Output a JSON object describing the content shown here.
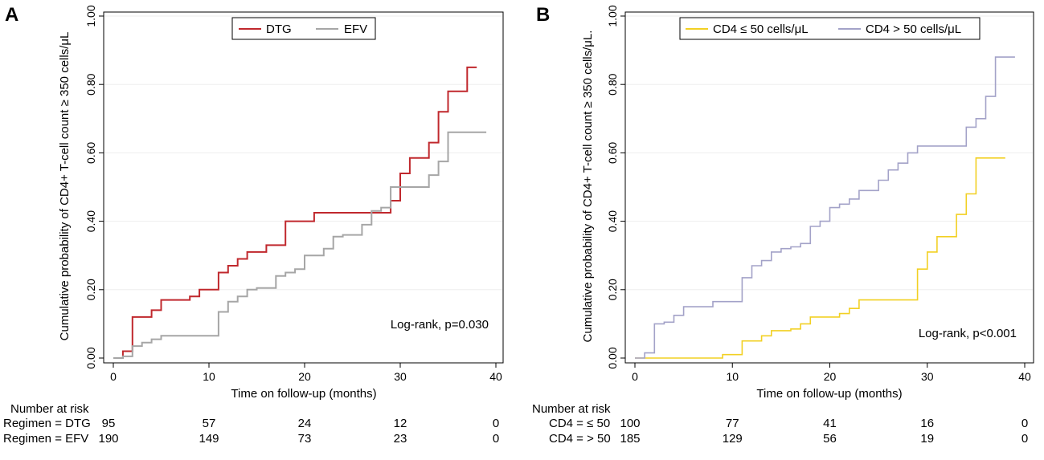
{
  "chart_data": [
    {
      "panel": "A",
      "type": "line",
      "step": true,
      "xlabel": "Time on follow-up (months)",
      "ylabel": "Cumulative probability of CD4+ T-cell count ≥ 350 cells/μL",
      "xlim": [
        0,
        40
      ],
      "ylim": [
        0,
        1
      ],
      "xticks": [
        "0",
        "10",
        "20",
        "30",
        "40"
      ],
      "xtick_values": [
        0,
        10,
        20,
        30,
        40
      ],
      "yticks": [
        "0.00",
        "0.20",
        "0.40",
        "0.60",
        "0.80",
        "1.00"
      ],
      "ytick_values": [
        0,
        0.2,
        0.4,
        0.6,
        0.8,
        1.0
      ],
      "legend": {
        "position": "top-center",
        "entries": [
          {
            "label": "DTG",
            "color": "#c0282d"
          },
          {
            "label": "EFV",
            "color": "#a6a6a6"
          }
        ]
      },
      "annotation": "Log-rank, p=0.030",
      "series": [
        {
          "name": "DTG",
          "color": "#c0282d",
          "x": [
            0,
            1,
            2,
            4,
            5,
            8,
            9,
            11,
            12,
            13,
            14,
            16,
            18,
            21,
            29,
            30,
            31,
            33,
            34,
            35,
            37,
            38
          ],
          "y": [
            0,
            0.02,
            0.12,
            0.14,
            0.17,
            0.18,
            0.2,
            0.25,
            0.27,
            0.29,
            0.31,
            0.33,
            0.4,
            0.425,
            0.46,
            0.54,
            0.585,
            0.63,
            0.72,
            0.78,
            0.85,
            0.85
          ]
        },
        {
          "name": "EFV",
          "color": "#a6a6a6",
          "x": [
            0,
            1,
            2,
            3,
            4,
            5,
            11,
            12,
            13,
            14,
            15,
            17,
            18,
            19,
            20,
            22,
            23,
            24,
            26,
            27,
            28,
            29,
            33,
            34,
            35,
            36,
            39
          ],
          "y": [
            0,
            0.005,
            0.035,
            0.045,
            0.055,
            0.065,
            0.135,
            0.165,
            0.18,
            0.2,
            0.205,
            0.24,
            0.25,
            0.26,
            0.3,
            0.32,
            0.355,
            0.36,
            0.39,
            0.43,
            0.44,
            0.5,
            0.535,
            0.575,
            0.66,
            0.66,
            0.66
          ]
        }
      ],
      "risk_table": {
        "header": "Number at risk",
        "rows": [
          {
            "label": "Regimen = DTG",
            "values": [
              "95",
              "57",
              "24",
              "12",
              "0"
            ]
          },
          {
            "label": "Regimen = EFV",
            "values": [
              "190",
              "149",
              "73",
              "23",
              "0"
            ]
          }
        ]
      }
    },
    {
      "panel": "B",
      "type": "line",
      "step": true,
      "xlabel": "Time on follow-up (months)",
      "ylabel": "Cumulative probability of CD4+ T-cell count ≥ 350 cells/μL.",
      "xlim": [
        0,
        40
      ],
      "ylim": [
        0,
        1
      ],
      "xticks": [
        "0",
        "10",
        "20",
        "30",
        "40"
      ],
      "xtick_values": [
        0,
        10,
        20,
        30,
        40
      ],
      "yticks": [
        "0.00",
        "0.20",
        "0.40",
        "0.60",
        "0.80",
        "1.00"
      ],
      "ytick_values": [
        0,
        0.2,
        0.4,
        0.6,
        0.8,
        1.0
      ],
      "legend": {
        "position": "top-center",
        "entries": [
          {
            "label": "CD4 ≤ 50 cells/μL",
            "color": "#f2d023"
          },
          {
            "label": "CD4 > 50 cells/μL",
            "color": "#a3a2c8"
          }
        ]
      },
      "annotation": "Log-rank, p<0.001",
      "series": [
        {
          "name": "CD4 ≤ 50 cells/μL",
          "color": "#f2d023",
          "x": [
            0,
            9,
            11,
            13,
            14,
            16,
            17,
            18,
            21,
            22,
            23,
            29,
            30,
            31,
            33,
            34,
            35,
            38
          ],
          "y": [
            0,
            0.01,
            0.05,
            0.065,
            0.08,
            0.085,
            0.1,
            0.12,
            0.13,
            0.145,
            0.17,
            0.26,
            0.31,
            0.355,
            0.42,
            0.48,
            0.585,
            0.585
          ]
        },
        {
          "name": "CD4 > 50 cells/μL",
          "color": "#a3a2c8",
          "x": [
            0,
            1,
            2,
            3,
            4,
            5,
            8,
            11,
            12,
            13,
            14,
            15,
            16,
            17,
            18,
            19,
            20,
            21,
            22,
            23,
            25,
            26,
            27,
            28,
            29,
            34,
            35,
            36,
            37,
            39
          ],
          "y": [
            0,
            0.015,
            0.1,
            0.105,
            0.125,
            0.15,
            0.165,
            0.235,
            0.27,
            0.285,
            0.31,
            0.32,
            0.325,
            0.335,
            0.385,
            0.4,
            0.44,
            0.45,
            0.465,
            0.49,
            0.52,
            0.55,
            0.57,
            0.6,
            0.62,
            0.675,
            0.7,
            0.765,
            0.88,
            0.88
          ]
        }
      ],
      "risk_table": {
        "header": "Number at risk",
        "rows": [
          {
            "label": "CD4 = ≤ 50",
            "values": [
              "100",
              "77",
              "41",
              "16",
              "0"
            ]
          },
          {
            "label": "CD4 = > 50",
            "values": [
              "185",
              "129",
              "56",
              "19",
              "0"
            ]
          }
        ]
      }
    }
  ]
}
